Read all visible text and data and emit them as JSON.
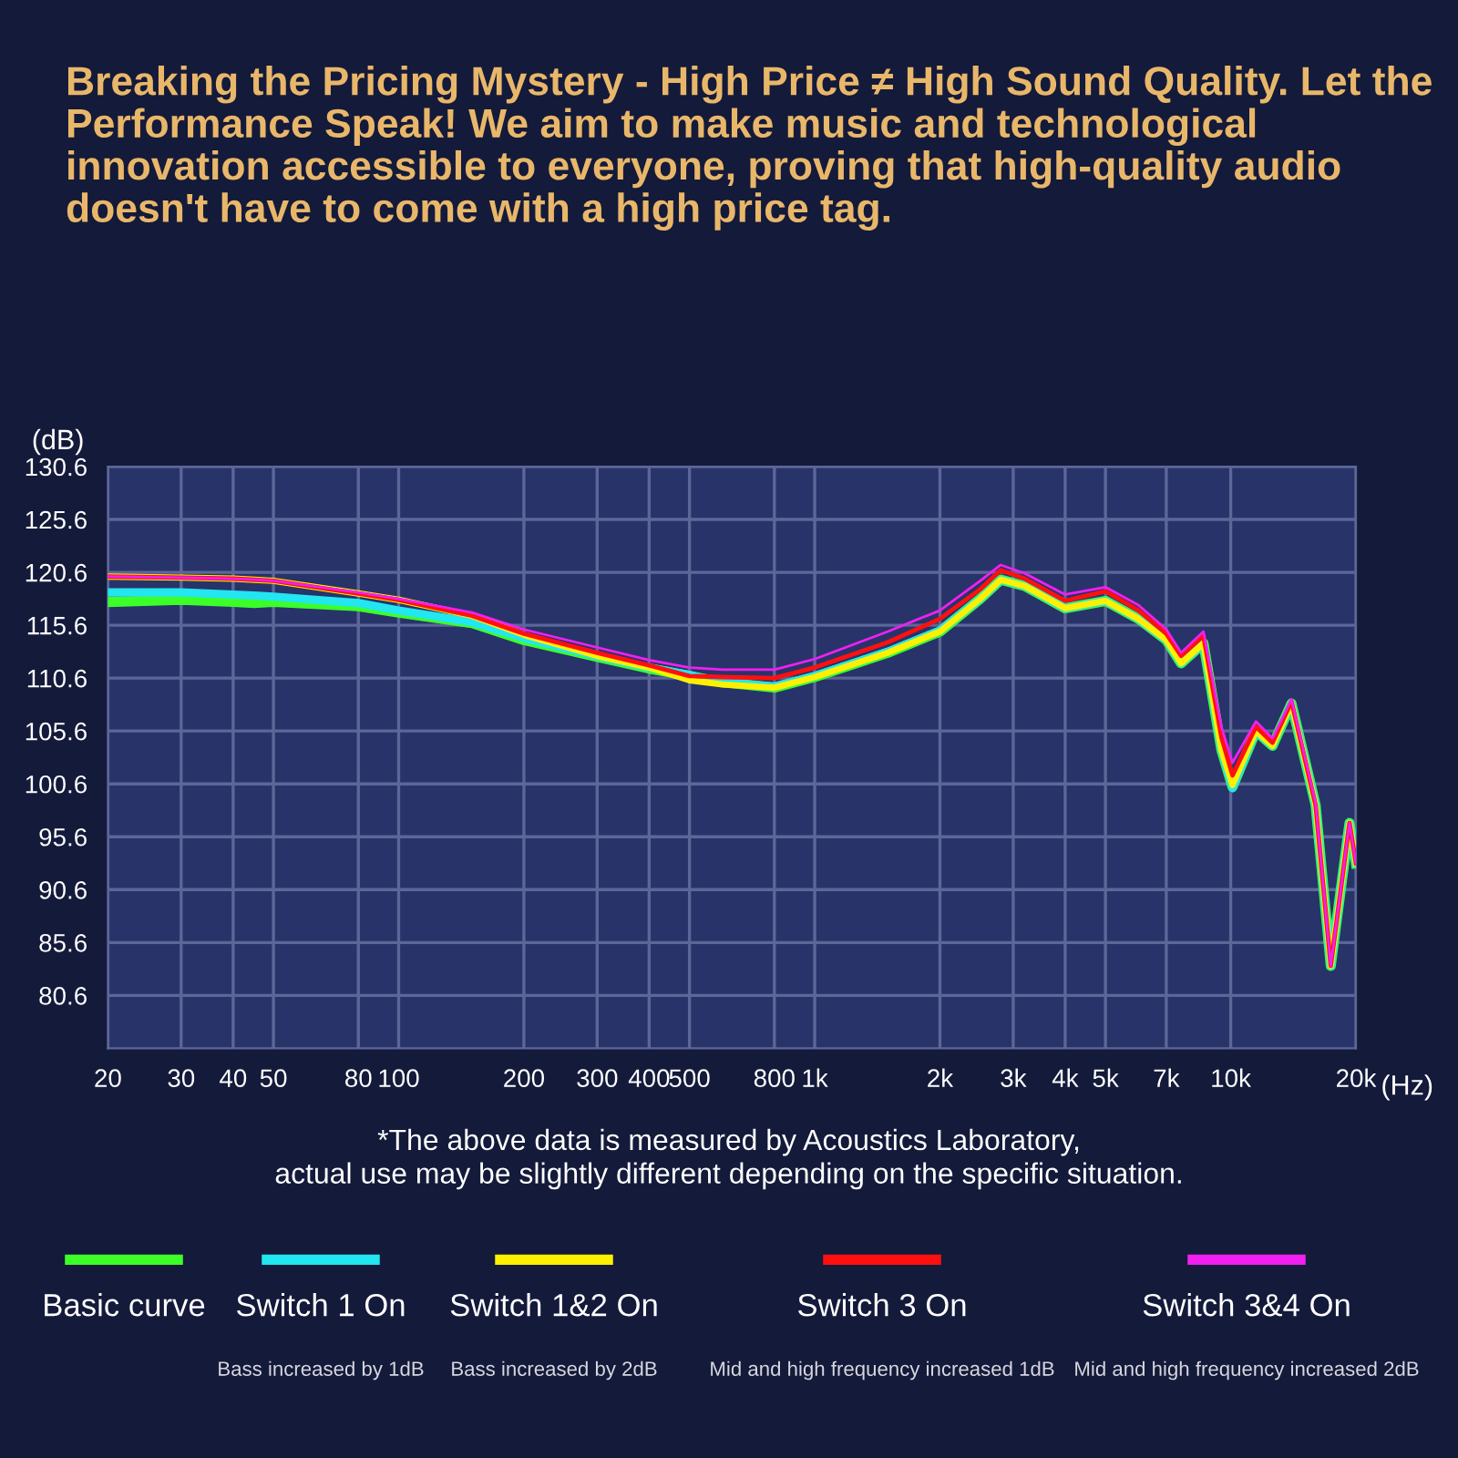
{
  "chart_data": {
    "type": "line",
    "title": "Breaking the Pricing Mystery - High Price ≠ High Sound Quality. Let the Performance Speak! We aim to make music and technological innovation accessible to everyone, proving that high-quality audio doesn't have to come with a high price tag.",
    "xlabel": "(Hz)",
    "ylabel": "(dB)",
    "log": "x",
    "x": [
      20,
      30,
      40,
      45,
      50,
      80,
      100,
      150,
      200,
      300,
      400,
      500,
      600,
      800,
      1000,
      1500,
      2000,
      2500,
      2800,
      3200,
      4000,
      5000,
      6000,
      7000,
      7600,
      8600,
      9500,
      10100,
      11500,
      12600,
      14000,
      16000,
      17400,
      19300,
      20000
    ],
    "series": [
      {
        "name": "Basic curve",
        "color": "#3cff2a",
        "values": [
          117.8,
          118.0,
          117.8,
          117.7,
          117.8,
          117.4,
          116.8,
          115.8,
          114.2,
          112.6,
          111.5,
          110.8,
          110.2,
          109.7,
          110.7,
          113.0,
          115.0,
          118.1,
          119.9,
          119.3,
          117.2,
          117.9,
          116.2,
          114.2,
          112.0,
          113.9,
          103.8,
          100.3,
          105.6,
          104.2,
          108.2,
          98.6,
          83.4,
          96.9,
          93.1
        ]
      },
      {
        "name": "Switch 1 On",
        "color": "#22e6f0",
        "values": [
          118.7,
          118.7,
          118.5,
          118.4,
          118.3,
          117.7,
          117.0,
          115.9,
          114.4,
          112.7,
          111.6,
          110.9,
          110.2,
          109.8,
          110.8,
          113.1,
          115.1,
          118.1,
          119.9,
          119.3,
          117.2,
          117.9,
          116.2,
          114.2,
          112.0,
          113.9,
          103.8,
          100.2,
          105.6,
          104.2,
          108.2,
          98.6,
          83.4,
          96.9,
          93.1
        ]
      },
      {
        "name": "Switch 1&2 On",
        "color": "#fff000",
        "values": [
          120.2,
          120.1,
          120.0,
          119.9,
          119.8,
          118.6,
          118.0,
          116.5,
          114.7,
          112.7,
          111.6,
          110.4,
          110.0,
          109.7,
          110.7,
          113.0,
          115.0,
          118.1,
          119.9,
          119.3,
          117.2,
          117.9,
          116.2,
          114.2,
          112.0,
          113.9,
          103.8,
          100.5,
          105.6,
          104.2,
          108.2,
          98.6,
          83.4,
          96.9,
          93.1
        ]
      },
      {
        "name": "Switch 3 On",
        "color": "#ff1010",
        "values": [
          120.2,
          120.1,
          120.0,
          119.9,
          119.8,
          118.6,
          118.0,
          116.5,
          114.8,
          113.0,
          111.8,
          110.8,
          110.7,
          110.6,
          111.6,
          114.0,
          116.2,
          119.0,
          120.8,
          120.0,
          117.9,
          118.8,
          117.0,
          114.8,
          112.7,
          114.6,
          105.0,
          101.4,
          106.0,
          104.5,
          108.4,
          98.6,
          83.4,
          96.9,
          93.1
        ]
      },
      {
        "name": "Switch 3&4 On",
        "color": "#f020f0",
        "values": [
          120.2,
          120.1,
          120.0,
          119.9,
          119.8,
          118.7,
          118.1,
          116.8,
          115.2,
          113.5,
          112.3,
          111.6,
          111.4,
          111.4,
          112.4,
          115.0,
          117.0,
          119.8,
          121.3,
          120.5,
          118.5,
          119.2,
          117.5,
          115.2,
          113.0,
          115.0,
          106.0,
          102.6,
          106.5,
          104.9,
          108.6,
          98.8,
          83.4,
          96.9,
          93.1
        ]
      }
    ],
    "xlim": [
      20,
      20000
    ],
    "xticks": [
      20,
      30,
      40,
      50,
      80,
      100,
      200,
      300,
      400,
      500,
      800,
      {
        "value": 1000,
        "label": "1k"
      },
      {
        "value": 2000,
        "label": "2k"
      },
      {
        "value": 3000,
        "label": "3k"
      },
      {
        "value": 4000,
        "label": "4k"
      },
      {
        "value": 5000,
        "label": "5k"
      },
      {
        "value": 7000,
        "label": "7k"
      },
      {
        "value": 10000,
        "label": "10k"
      },
      {
        "value": 20000,
        "label": "20k"
      }
    ],
    "ylim": [
      75.6,
      130.6
    ],
    "yticks": [
      80.6,
      85.6,
      90.6,
      95.6,
      100.6,
      105.6,
      110.6,
      115.6,
      120.6,
      125.6,
      130.6
    ],
    "grid": true,
    "legend": "bottom",
    "annotations": [
      "*The above data is measured by Acoustics Laboratory,\nactual use may be slightly different depending on the specific situation.",
      "Bass increased by 1dB",
      "Bass increased by 2dB",
      "Mid and high frequency increased 1dB",
      "Mid and high frequency increased 2dB"
    ]
  }
}
